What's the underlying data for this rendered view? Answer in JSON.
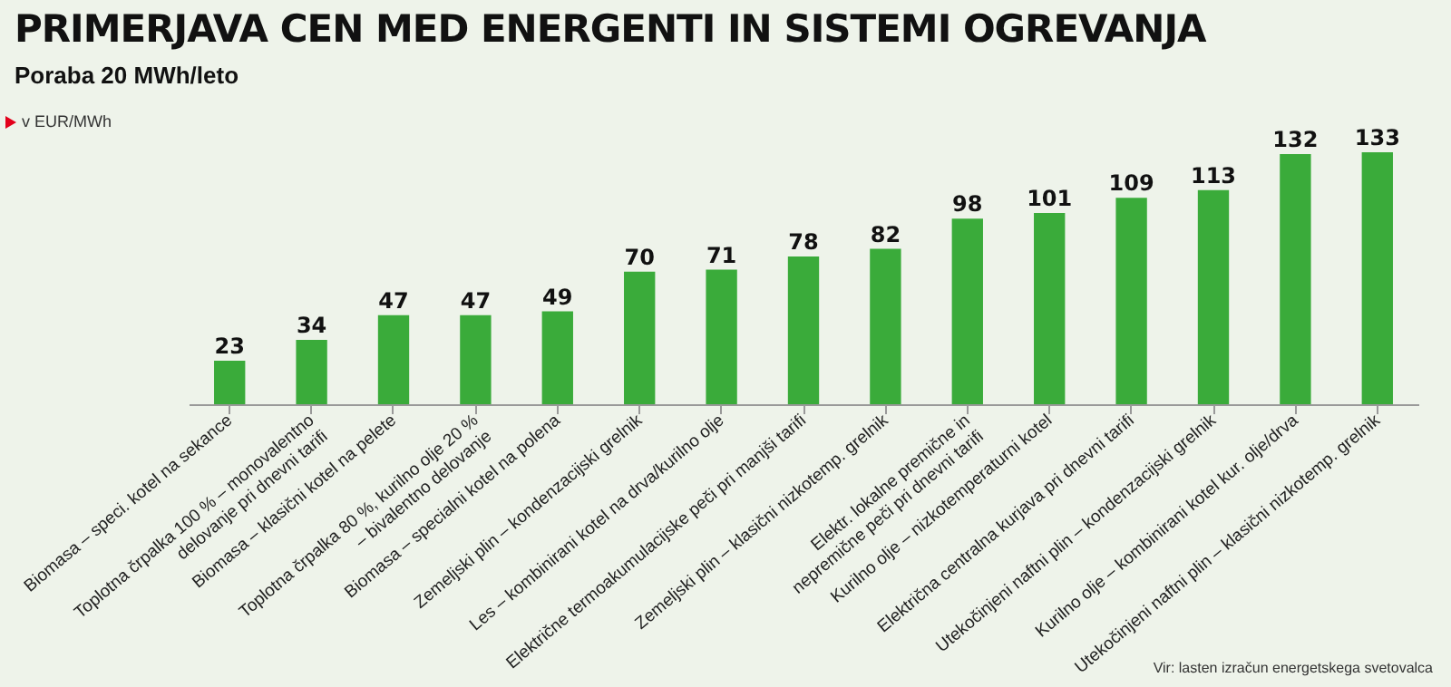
{
  "chart_data": {
    "type": "bar",
    "title": "PRIMERJAVA CEN MED ENERGENTI IN SISTEMI OGREVANJA",
    "subtitle": "Poraba 20 MWh/leto",
    "ylabel": "v EUR/MWh",
    "categories": [
      "Biomasa – speci. kotel na sekance",
      "Toplotna črpalka 100 % – monovalentno\ndelovanje pri dnevni tarifi",
      "Biomasa – klasični kotel na pelete",
      "Toplotna črpalka 80 %, kurilno olje 20 %\n– bivalentno delovanje",
      "Biomasa – specialni kotel na polena",
      "Zemeljski plin – kondenzacijski grelnik",
      "Les – kombinirani kotel na drva/kurilno olje",
      "Električne termoakumulacijske peči pri manjši tarifi",
      "Zemeljski plin – klasični nizkotemp. grelnik",
      "Elektr. lokalne premične in\nnepremične peči pri dnevni tarifi",
      "Kurilno olje – nizkotemperaturni kotel",
      "Električna centralna kurjava pri dnevni tarifi",
      "Utekočinjeni naftni plin – kondenzacijski grelnik",
      "Kurilno olje – kombinirani kotel kur. olje/drva",
      "Utekočinjeni naftni plin – klasični nizkotemp. grelnik"
    ],
    "values": [
      23,
      34,
      47,
      47,
      49,
      70,
      71,
      78,
      82,
      98,
      101,
      109,
      113,
      132,
      133
    ],
    "color": "#3aab3a",
    "data_labels": true,
    "grid": false,
    "tick_labels": "x",
    "annotations": [
      "Vir: lasten izračun energetskega svetovalca"
    ]
  }
}
